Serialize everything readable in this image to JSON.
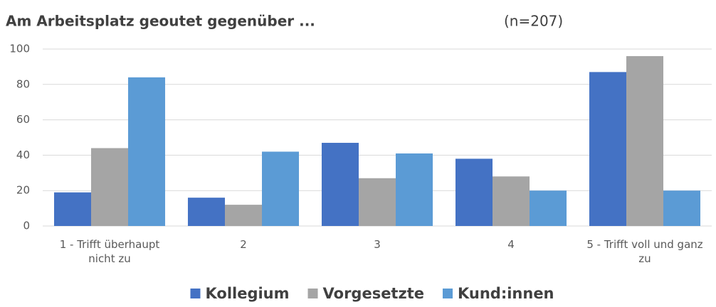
{
  "chart_data": {
    "type": "bar",
    "title": "Am Arbeitsplatz geoutet gegenüber ...",
    "subtitle": "(n=207)",
    "categories": [
      "1 - Trifft überhaupt nicht zu",
      "2",
      "3",
      "4",
      "5 - Trifft voll und ganz zu"
    ],
    "series": [
      {
        "name": "Kollegium",
        "color": "#4472c4",
        "values": [
          19,
          16,
          47,
          38,
          87
        ]
      },
      {
        "name": "Vorgesetzte",
        "color": "#a5a5a5",
        "values": [
          44,
          12,
          27,
          28,
          96
        ]
      },
      {
        "name": "Kund:innen",
        "color": "#5b9bd5",
        "values": [
          84,
          42,
          41,
          20,
          20
        ]
      }
    ],
    "ylim": [
      0,
      100
    ],
    "yticks": [
      0,
      20,
      40,
      60,
      80,
      100
    ],
    "grid": true,
    "legend": "bottom"
  }
}
